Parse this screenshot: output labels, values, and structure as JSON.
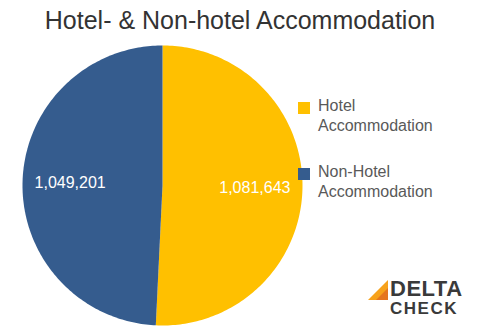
{
  "chart_data": {
    "type": "pie",
    "title": "Hotel- & Non-hotel Accommodation",
    "categories": [
      "Hotel Accommodation",
      "Non-Hotel Accommodation"
    ],
    "values": [
      1081643,
      1049201
    ],
    "value_labels": [
      "1,081,643",
      "1,049,201"
    ],
    "colors": [
      "#FFC000",
      "#355C8E"
    ],
    "data_labels": true,
    "legend": "right",
    "annotations": [
      "DELTA CHECK"
    ]
  }
}
